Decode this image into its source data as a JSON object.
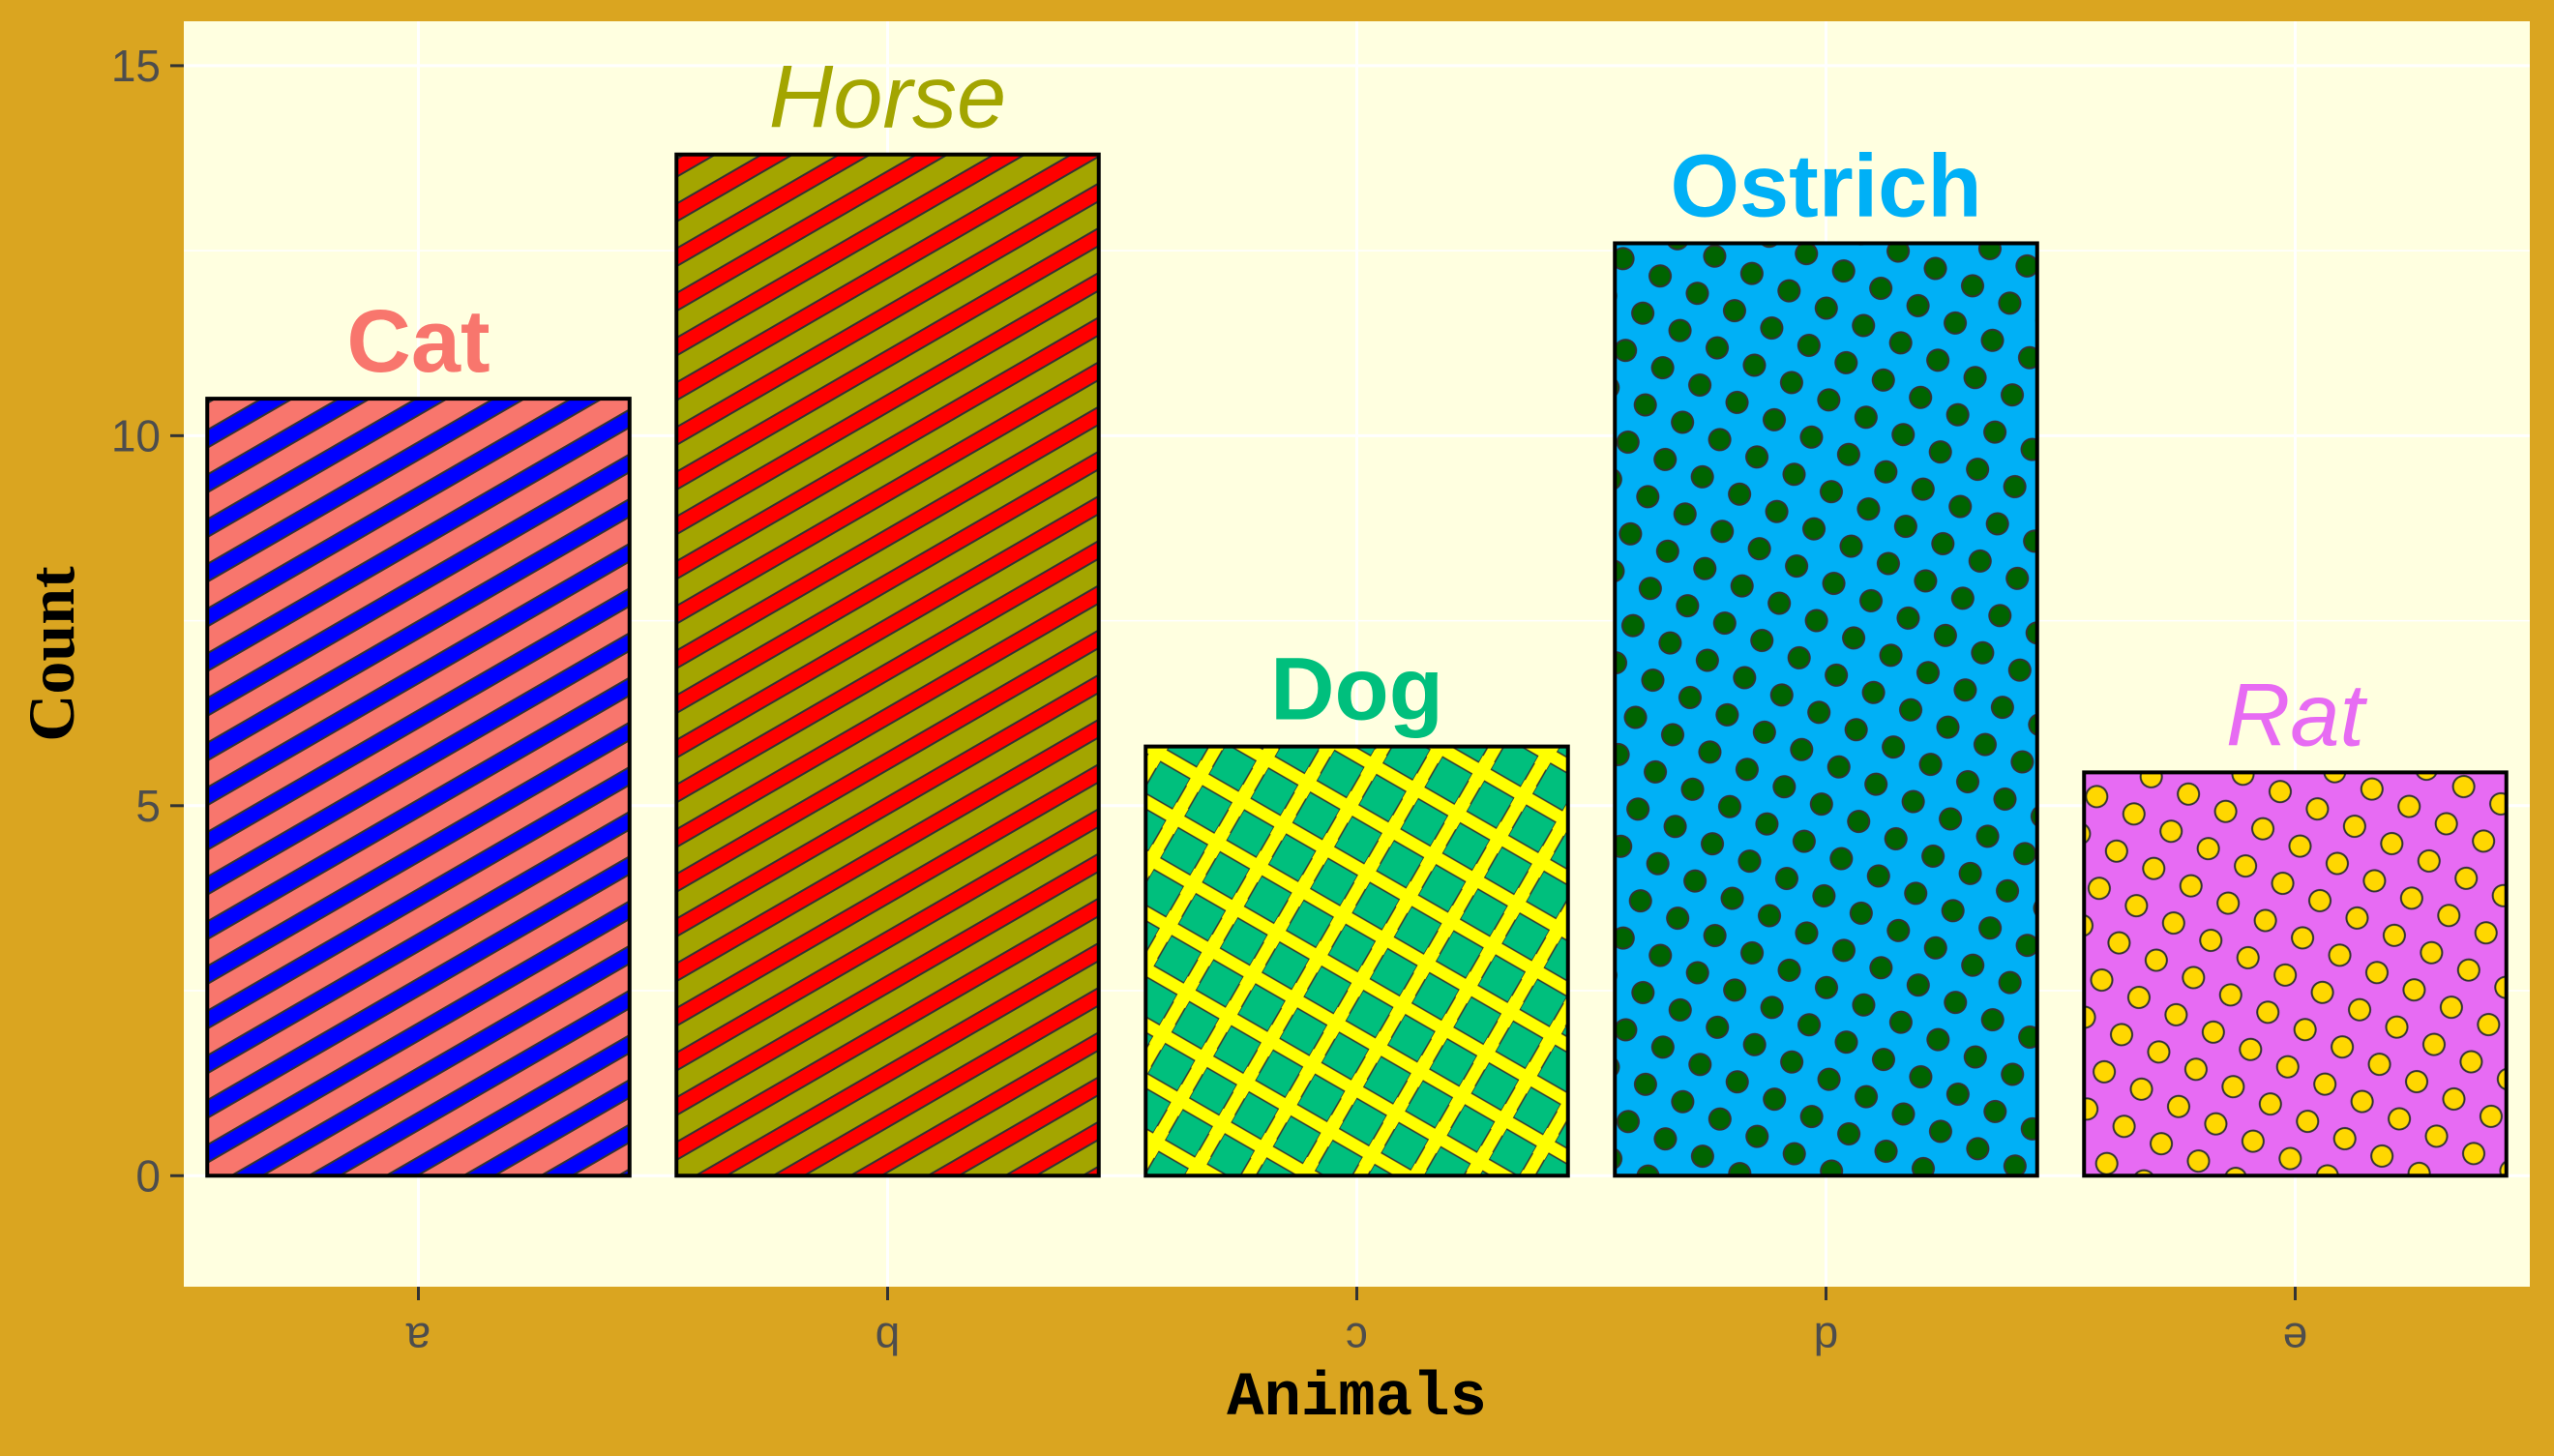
{
  "colors": {
    "page_background": "#DAA520",
    "panel_background": "#FFFFE0",
    "grid": "#FFFFFF",
    "tick_text": "#4D4D4D",
    "bar_outline": "#000000"
  },
  "chart_data": {
    "type": "bar",
    "title": "",
    "xlabel": "Animals",
    "ylabel": "Count",
    "ylim": [
      -1.5,
      15.6
    ],
    "y_ticks": [
      0,
      5,
      10,
      15
    ],
    "grid": true,
    "x_tick_labels_rotated_180": true,
    "categories": [
      "a",
      "b",
      "c",
      "d",
      "e"
    ],
    "values": [
      10.5,
      13.8,
      5.8,
      12.6,
      5.45
    ],
    "bar_labels": [
      {
        "text": "Cat",
        "color": "#F8766D",
        "style": "bold"
      },
      {
        "text": "Horse",
        "color": "#A3A500",
        "style": "italic"
      },
      {
        "text": "Dog",
        "color": "#00BF7D",
        "style": "bold"
      },
      {
        "text": "Ostrich",
        "color": "#00B0F6",
        "style": "bold"
      },
      {
        "text": "Rat",
        "color": "#E76BF3",
        "style": "italic"
      }
    ],
    "patterns": [
      {
        "type": "stripe",
        "fill": "#F8766D",
        "pattern_fill": "#0000FF"
      },
      {
        "type": "stripe",
        "fill": "#A3A500",
        "pattern_fill": "#FF0000"
      },
      {
        "type": "crosshatch",
        "fill": "#00BF7D",
        "pattern_fill": "#FFFF00"
      },
      {
        "type": "circle",
        "fill": "#00B0F6",
        "pattern_fill": "#006400"
      },
      {
        "type": "circle",
        "fill": "#E76BF3",
        "pattern_fill": "#FFD700"
      }
    ]
  }
}
